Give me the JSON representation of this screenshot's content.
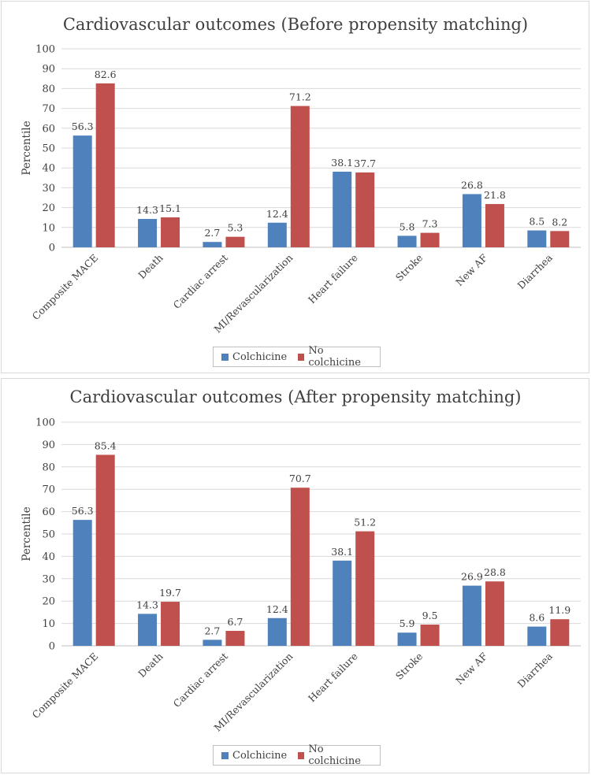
{
  "colors": {
    "series_0": "#4f81bd",
    "series_1": "#c0504d",
    "grid": "#d9d9d9",
    "axis": "#bfbfbf"
  },
  "chart_data": [
    {
      "type": "bar",
      "title": "Cardiovascular outcomes (Before propensity matching)",
      "xlabel": "",
      "ylabel": "Percentile",
      "ylim": [
        0,
        100
      ],
      "yticks": [
        0,
        10,
        20,
        30,
        40,
        50,
        60,
        70,
        80,
        90,
        100
      ],
      "grid": true,
      "legend": "bottom",
      "categories": [
        "Composite MACE",
        "Death",
        "Cardiac arrest",
        "MI/Revascularization",
        "Heart failure",
        "Stroke",
        "New AF",
        "Diarrhea"
      ],
      "series": [
        {
          "name": "Colchicine",
          "values": [
            56.3,
            14.3,
            2.7,
            12.4,
            38.1,
            5.8,
            26.8,
            8.5
          ]
        },
        {
          "name": "No colchicine",
          "values": [
            82.6,
            15.1,
            5.3,
            71.2,
            37.7,
            7.3,
            21.8,
            8.2
          ]
        }
      ]
    },
    {
      "type": "bar",
      "title": "Cardiovascular outcomes (After propensity matching)",
      "xlabel": "",
      "ylabel": "Percentile",
      "ylim": [
        0,
        100
      ],
      "yticks": [
        0,
        10,
        20,
        30,
        40,
        50,
        60,
        70,
        80,
        90,
        100
      ],
      "grid": true,
      "legend": "bottom",
      "categories": [
        "Composite MACE",
        "Death",
        "Cardiac arrest",
        "MI/Revascularization",
        "Heart failure",
        "Stroke",
        "New AF",
        "Diarrhea"
      ],
      "series": [
        {
          "name": "Colchicine",
          "values": [
            56.3,
            14.3,
            2.7,
            12.4,
            38.1,
            5.9,
            26.9,
            8.6
          ]
        },
        {
          "name": "No colchicine",
          "values": [
            85.4,
            19.7,
            6.7,
            70.7,
            51.2,
            9.5,
            28.8,
            11.9
          ]
        }
      ]
    }
  ]
}
